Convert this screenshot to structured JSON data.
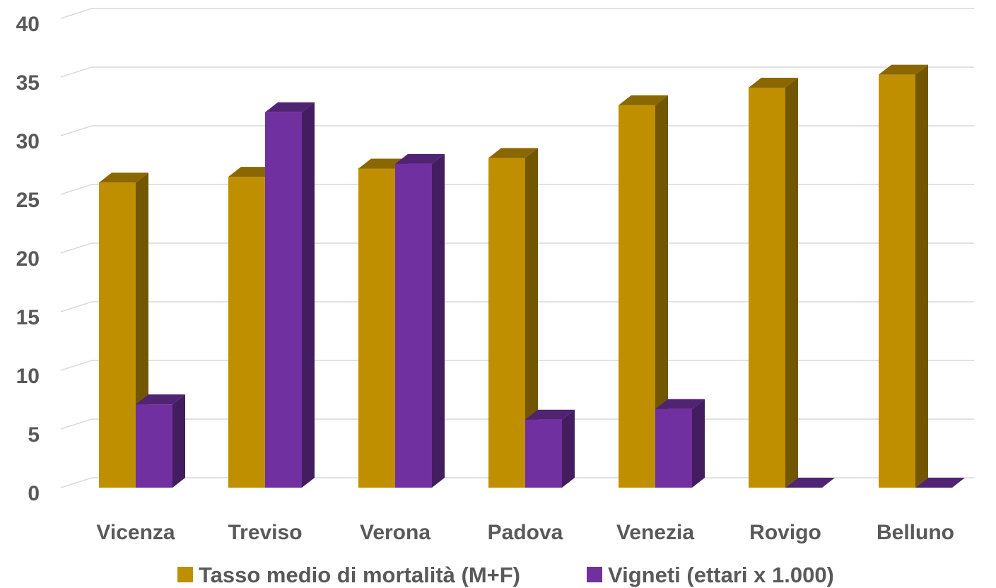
{
  "chart_data": {
    "type": "bar",
    "categories": [
      "Vicenza",
      "Treviso",
      "Verona",
      "Padova",
      "Venezia",
      "Rovigo",
      "Belluno"
    ],
    "series": [
      {
        "name": "Tasso medio di mortalità (M+F)",
        "color": "#BF8F00",
        "values": [
          26,
          26.5,
          27.2,
          28.1,
          32.6,
          34.1,
          35.2
        ]
      },
      {
        "name": "Vigneti (ettari x 1.000)",
        "color": "#7030A0",
        "values": [
          7.1,
          32,
          27.6,
          5.8,
          6.7,
          0,
          0
        ]
      }
    ],
    "yticks": [
      "0",
      "5",
      "10",
      "15",
      "20",
      "25",
      "30",
      "35",
      "40"
    ],
    "ylim": [
      0,
      40
    ],
    "grid": true,
    "legend_position": "bottom",
    "style": "3d-clustered-column"
  }
}
